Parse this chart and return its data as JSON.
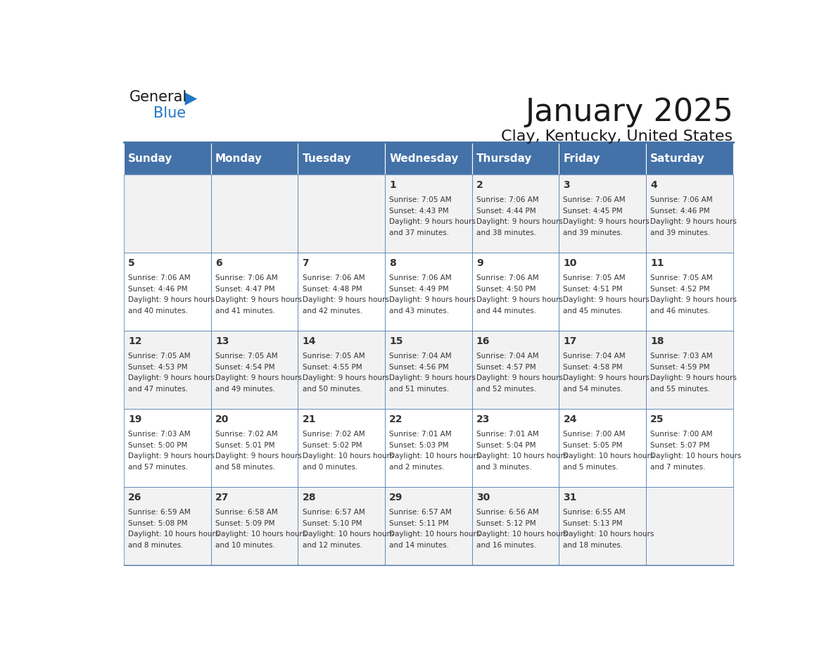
{
  "title": "January 2025",
  "subtitle": "Clay, Kentucky, United States",
  "header_bg_color": "#4472A8",
  "header_text_color": "#FFFFFF",
  "cell_bg_color_odd": "#F2F2F2",
  "cell_bg_color_even": "#FFFFFF",
  "cell_text_color": "#333333",
  "day_number_color": "#333333",
  "border_color": "#4472A8",
  "days_of_week": [
    "Sunday",
    "Monday",
    "Tuesday",
    "Wednesday",
    "Thursday",
    "Friday",
    "Saturday"
  ],
  "calendar_data": [
    [
      {
        "day": "",
        "sunrise": "",
        "sunset": "",
        "daylight": ""
      },
      {
        "day": "",
        "sunrise": "",
        "sunset": "",
        "daylight": ""
      },
      {
        "day": "",
        "sunrise": "",
        "sunset": "",
        "daylight": ""
      },
      {
        "day": "1",
        "sunrise": "7:05 AM",
        "sunset": "4:43 PM",
        "daylight": "9 hours and 37 minutes."
      },
      {
        "day": "2",
        "sunrise": "7:06 AM",
        "sunset": "4:44 PM",
        "daylight": "9 hours and 38 minutes."
      },
      {
        "day": "3",
        "sunrise": "7:06 AM",
        "sunset": "4:45 PM",
        "daylight": "9 hours and 39 minutes."
      },
      {
        "day": "4",
        "sunrise": "7:06 AM",
        "sunset": "4:46 PM",
        "daylight": "9 hours and 39 minutes."
      }
    ],
    [
      {
        "day": "5",
        "sunrise": "7:06 AM",
        "sunset": "4:46 PM",
        "daylight": "9 hours and 40 minutes."
      },
      {
        "day": "6",
        "sunrise": "7:06 AM",
        "sunset": "4:47 PM",
        "daylight": "9 hours and 41 minutes."
      },
      {
        "day": "7",
        "sunrise": "7:06 AM",
        "sunset": "4:48 PM",
        "daylight": "9 hours and 42 minutes."
      },
      {
        "day": "8",
        "sunrise": "7:06 AM",
        "sunset": "4:49 PM",
        "daylight": "9 hours and 43 minutes."
      },
      {
        "day": "9",
        "sunrise": "7:06 AM",
        "sunset": "4:50 PM",
        "daylight": "9 hours and 44 minutes."
      },
      {
        "day": "10",
        "sunrise": "7:05 AM",
        "sunset": "4:51 PM",
        "daylight": "9 hours and 45 minutes."
      },
      {
        "day": "11",
        "sunrise": "7:05 AM",
        "sunset": "4:52 PM",
        "daylight": "9 hours and 46 minutes."
      }
    ],
    [
      {
        "day": "12",
        "sunrise": "7:05 AM",
        "sunset": "4:53 PM",
        "daylight": "9 hours and 47 minutes."
      },
      {
        "day": "13",
        "sunrise": "7:05 AM",
        "sunset": "4:54 PM",
        "daylight": "9 hours and 49 minutes."
      },
      {
        "day": "14",
        "sunrise": "7:05 AM",
        "sunset": "4:55 PM",
        "daylight": "9 hours and 50 minutes."
      },
      {
        "day": "15",
        "sunrise": "7:04 AM",
        "sunset": "4:56 PM",
        "daylight": "9 hours and 51 minutes."
      },
      {
        "day": "16",
        "sunrise": "7:04 AM",
        "sunset": "4:57 PM",
        "daylight": "9 hours and 52 minutes."
      },
      {
        "day": "17",
        "sunrise": "7:04 AM",
        "sunset": "4:58 PM",
        "daylight": "9 hours and 54 minutes."
      },
      {
        "day": "18",
        "sunrise": "7:03 AM",
        "sunset": "4:59 PM",
        "daylight": "9 hours and 55 minutes."
      }
    ],
    [
      {
        "day": "19",
        "sunrise": "7:03 AM",
        "sunset": "5:00 PM",
        "daylight": "9 hours and 57 minutes."
      },
      {
        "day": "20",
        "sunrise": "7:02 AM",
        "sunset": "5:01 PM",
        "daylight": "9 hours and 58 minutes."
      },
      {
        "day": "21",
        "sunrise": "7:02 AM",
        "sunset": "5:02 PM",
        "daylight": "10 hours and 0 minutes."
      },
      {
        "day": "22",
        "sunrise": "7:01 AM",
        "sunset": "5:03 PM",
        "daylight": "10 hours and 2 minutes."
      },
      {
        "day": "23",
        "sunrise": "7:01 AM",
        "sunset": "5:04 PM",
        "daylight": "10 hours and 3 minutes."
      },
      {
        "day": "24",
        "sunrise": "7:00 AM",
        "sunset": "5:05 PM",
        "daylight": "10 hours and 5 minutes."
      },
      {
        "day": "25",
        "sunrise": "7:00 AM",
        "sunset": "5:07 PM",
        "daylight": "10 hours and 7 minutes."
      }
    ],
    [
      {
        "day": "26",
        "sunrise": "6:59 AM",
        "sunset": "5:08 PM",
        "daylight": "10 hours and 8 minutes."
      },
      {
        "day": "27",
        "sunrise": "6:58 AM",
        "sunset": "5:09 PM",
        "daylight": "10 hours and 10 minutes."
      },
      {
        "day": "28",
        "sunrise": "6:57 AM",
        "sunset": "5:10 PM",
        "daylight": "10 hours and 12 minutes."
      },
      {
        "day": "29",
        "sunrise": "6:57 AM",
        "sunset": "5:11 PM",
        "daylight": "10 hours and 14 minutes."
      },
      {
        "day": "30",
        "sunrise": "6:56 AM",
        "sunset": "5:12 PM",
        "daylight": "10 hours and 16 minutes."
      },
      {
        "day": "31",
        "sunrise": "6:55 AM",
        "sunset": "5:13 PM",
        "daylight": "10 hours and 18 minutes."
      },
      {
        "day": "",
        "sunrise": "",
        "sunset": "",
        "daylight": ""
      }
    ]
  ]
}
